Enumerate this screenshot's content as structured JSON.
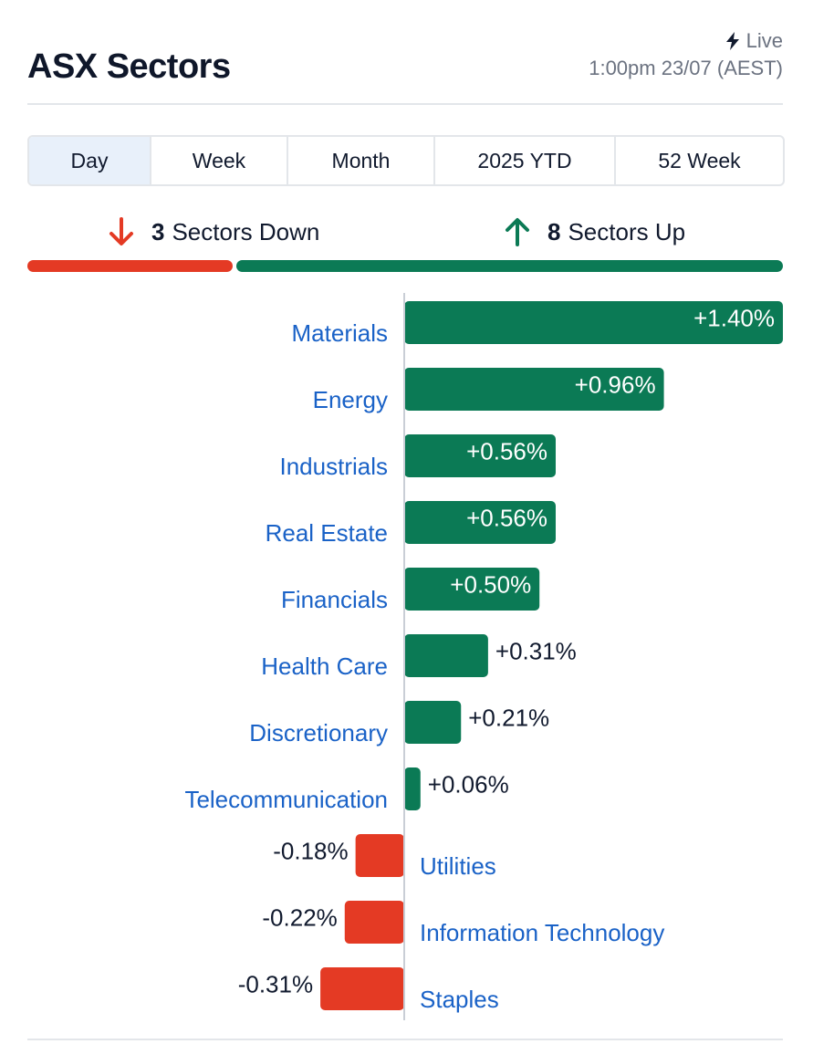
{
  "header": {
    "title": "ASX Sectors",
    "live_label": "Live",
    "timestamp": "1:00pm 23/07 (AEST)"
  },
  "tabs": [
    {
      "label": "Day",
      "active": true
    },
    {
      "label": "Week",
      "active": false
    },
    {
      "label": "Month",
      "active": false
    },
    {
      "label": "2025 YTD",
      "active": false
    },
    {
      "label": "52 Week",
      "active": false
    }
  ],
  "summary": {
    "down_count": "3",
    "down_label": "Sectors Down",
    "up_count": "8",
    "up_label": "Sectors Up"
  },
  "colors": {
    "up": "#0b7a55",
    "down": "#e43a24",
    "link": "#1a62c7"
  },
  "chart_data": {
    "type": "bar",
    "orientation": "horizontal",
    "categories": [
      "Materials",
      "Energy",
      "Industrials",
      "Real Estate",
      "Financials",
      "Health Care",
      "Discretionary",
      "Telecommunication",
      "Utilities",
      "Information Technology",
      "Staples"
    ],
    "values": [
      1.4,
      0.96,
      0.56,
      0.56,
      0.5,
      0.31,
      0.21,
      0.06,
      -0.18,
      -0.22,
      -0.31
    ],
    "value_labels": [
      "+1.40%",
      "+0.96%",
      "+0.56%",
      "+0.56%",
      "+0.50%",
      "+0.31%",
      "+0.21%",
      "+0.06%",
      "-0.18%",
      "-0.22%",
      "-0.31%"
    ]
  }
}
